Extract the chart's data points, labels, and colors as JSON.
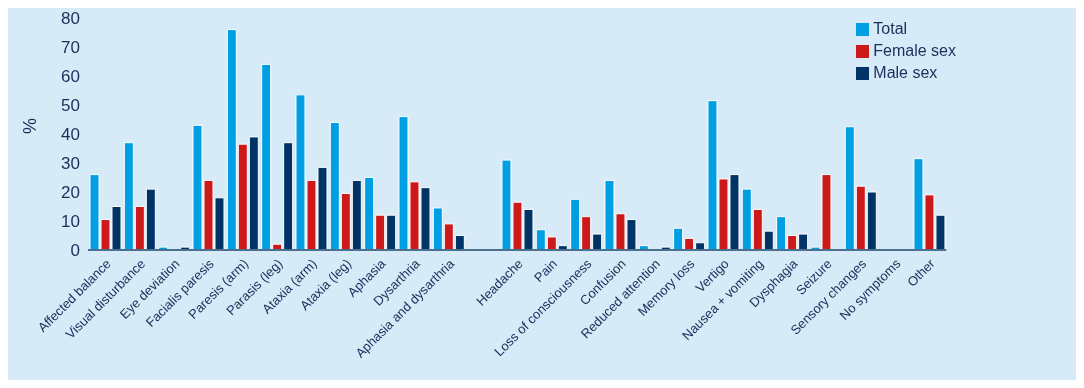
{
  "chart_data": {
    "type": "bar",
    "ylabel": "%",
    "categories": [
      "Affected balance",
      "Visual disturbance",
      "Eye deviation",
      "Facialis paresis",
      "Paresis (arm)",
      "Parasis (leg)",
      "Ataxia (arm)",
      "Ataxia (leg)",
      "Aphasia",
      "Dysarthria",
      "Aphasia and dysarthria",
      null,
      "Headache",
      "Pain",
      "Loss of consciousness",
      "Confusion",
      "Reduced attention",
      "Memory loss",
      "Vertigo",
      "Nausea + vomiting",
      "Dysphagia",
      "Seizure",
      "Sensory changes",
      "No symptoms",
      "Other"
    ],
    "series": [
      {
        "name": "Total",
        "color": "#009fe3",
        "values": [
          26,
          37,
          1,
          43,
          76,
          64,
          53.5,
          44,
          25,
          46,
          14.5,
          null,
          31,
          7,
          17.5,
          24,
          1.5,
          7.5,
          51.5,
          21,
          11.5,
          1,
          42.5,
          0,
          31.5
        ]
      },
      {
        "name": "Female sex",
        "color": "#cc1a1a",
        "values": [
          10.5,
          15,
          0,
          24,
          36.5,
          2,
          24,
          19.5,
          12,
          23.5,
          9,
          null,
          16.5,
          4.5,
          11.5,
          12.5,
          0,
          4,
          24.5,
          14,
          5,
          26,
          22,
          0,
          19
        ]
      },
      {
        "name": "Male sex",
        "color": "#003366",
        "values": [
          15,
          21,
          1,
          18,
          39,
          37,
          28.5,
          24,
          12,
          21.5,
          5,
          null,
          14,
          1.5,
          5.5,
          10.5,
          1,
          2.5,
          26,
          6.5,
          5.5,
          0,
          20,
          0,
          12
        ]
      }
    ],
    "ylim": [
      0,
      80
    ],
    "yticks": [
      0,
      10,
      20,
      30,
      40,
      50,
      60,
      70,
      80
    ],
    "grid": false,
    "legend": "top right"
  }
}
